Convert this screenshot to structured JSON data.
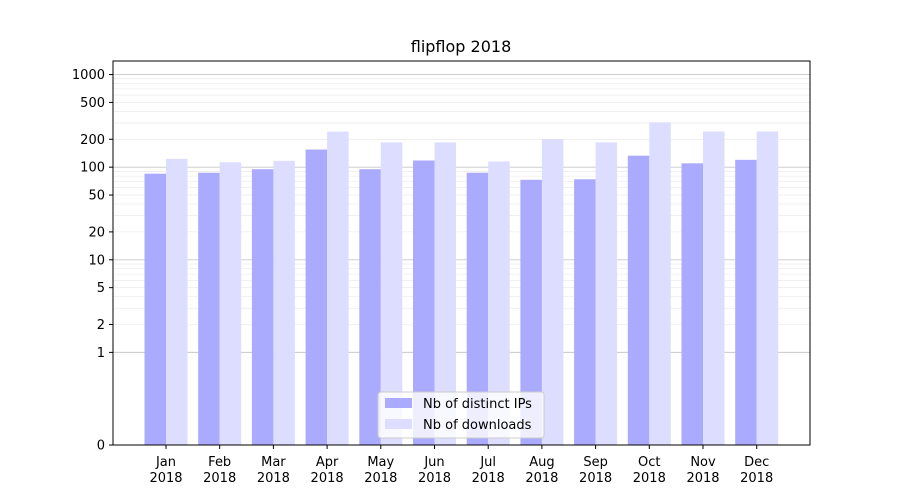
{
  "chart_data": {
    "type": "bar",
    "title": "flipflop 2018",
    "xlabel": "",
    "ylabel": "",
    "yscale": "symlog",
    "ylim": [
      0,
      1400
    ],
    "categories": [
      [
        "Jan",
        "2018"
      ],
      [
        "Feb",
        "2018"
      ],
      [
        "Mar",
        "2018"
      ],
      [
        "Apr",
        "2018"
      ],
      [
        "May",
        "2018"
      ],
      [
        "Jun",
        "2018"
      ],
      [
        "Jul",
        "2018"
      ],
      [
        "Aug",
        "2018"
      ],
      [
        "Sep",
        "2018"
      ],
      [
        "Oct",
        "2018"
      ],
      [
        "Nov",
        "2018"
      ],
      [
        "Dec",
        "2018"
      ]
    ],
    "series": [
      {
        "name": "Nb of distinct IPs",
        "color": "#aaaaff",
        "values": [
          85,
          87,
          95,
          155,
          95,
          118,
          87,
          73,
          74,
          133,
          110,
          120
        ]
      },
      {
        "name": "Nb of downloads",
        "color": "#ddddff",
        "values": [
          123,
          113,
          117,
          242,
          185,
          185,
          115,
          200,
          185,
          305,
          243,
          243
        ]
      }
    ],
    "yticks": [
      {
        "value": 0,
        "label": "0"
      },
      {
        "value": 1,
        "label": "1"
      },
      {
        "value": 2,
        "label": "2"
      },
      {
        "value": 5,
        "label": "5"
      },
      {
        "value": 10,
        "label": "10"
      },
      {
        "value": 20,
        "label": "20"
      },
      {
        "value": 50,
        "label": "50"
      },
      {
        "value": 100,
        "label": "100"
      },
      {
        "value": 200,
        "label": "200"
      },
      {
        "value": 500,
        "label": "500"
      },
      {
        "value": 1000,
        "label": "1000"
      }
    ],
    "grid": true,
    "legend": "bottom-center"
  }
}
